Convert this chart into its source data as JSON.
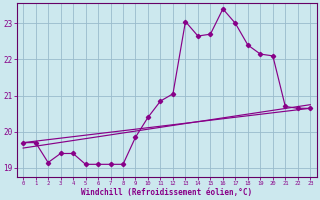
{
  "xlabel": "Windchill (Refroidissement éolien,°C)",
  "bg_color": "#cce8ee",
  "line_color": "#880088",
  "grid_color": "#99bbcc",
  "spine_color": "#660066",
  "xlim": [
    -0.5,
    23.5
  ],
  "ylim": [
    18.75,
    23.55
  ],
  "xticks": [
    0,
    1,
    2,
    3,
    4,
    5,
    6,
    7,
    8,
    9,
    10,
    11,
    12,
    13,
    14,
    15,
    16,
    17,
    18,
    19,
    20,
    21,
    22,
    23
  ],
  "yticks": [
    19,
    20,
    21,
    22,
    23
  ],
  "line1_x": [
    0,
    1,
    2,
    3,
    4,
    5,
    6,
    7,
    8,
    9,
    10,
    11,
    12,
    13,
    14,
    15,
    16,
    17,
    18,
    19,
    20,
    21,
    22,
    23
  ],
  "line1_y": [
    19.7,
    19.7,
    19.15,
    19.4,
    19.4,
    19.1,
    19.1,
    19.1,
    19.1,
    19.85,
    20.4,
    20.85,
    21.05,
    23.05,
    22.65,
    22.7,
    23.4,
    23.0,
    22.4,
    22.15,
    22.1,
    20.7,
    20.65,
    20.65
  ],
  "line2_x": [
    0,
    23
  ],
  "line2_y": [
    19.7,
    20.65
  ],
  "line3_x": [
    0,
    23
  ],
  "line3_y": [
    19.55,
    20.75
  ]
}
